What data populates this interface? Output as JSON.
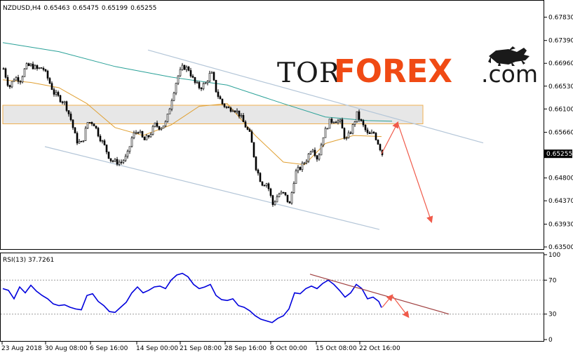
{
  "header": {
    "symbol": "NZDUSD,H4",
    "open": "0.65463",
    "high": "0.65475",
    "low": "0.65199",
    "close": "0.65255"
  },
  "price_axis": {
    "ticks": [
      "0.67830",
      "0.67390",
      "0.66960",
      "0.66530",
      "0.66100",
      "0.65660",
      "0.65255",
      "0.64800",
      "0.64370",
      "0.63930",
      "0.63500"
    ],
    "current": "0.65255"
  },
  "rsi": {
    "label": "RSI(13) 37.7261",
    "ticks": [
      "100",
      "70",
      "30",
      "0"
    ]
  },
  "time_axis": {
    "labels": [
      "23 Aug 2018",
      "30 Aug 08:00",
      "6 Sep 16:00",
      "14 Sep 00:00",
      "21 Sep 08:00",
      "28 Sep 16:00",
      "8 Oct 00:00",
      "15 Oct 08:00",
      "22 Oct 16:00"
    ]
  },
  "brand": {
    "tor": "TOR",
    "forex": "FOREX",
    "com": ".com",
    "mascot": "bull-and-bear-icon"
  },
  "colors": {
    "bull": "#000000",
    "bear": "#000000",
    "ma_fast": "#e0a033",
    "ma_slow": "#2aa198",
    "channel": "#b4c6d8",
    "zone_fill": "#e3e3e3",
    "zone_border": "#f0b050",
    "arrow": "#f05a4a",
    "rsi_line": "#0000dd",
    "rsi_trend": "#a04040",
    "brand_orange": "#f04a14"
  },
  "chart_data": [
    {
      "type": "candlestick",
      "title": "NZDUSD,H4",
      "ylim": [
        0.635,
        0.681
      ],
      "ohlc_header": [
        0.65463,
        0.65475,
        0.65199,
        0.65255
      ],
      "close_path": [
        [
          0,
          0.6686
        ],
        [
          8,
          0.665
        ],
        [
          16,
          0.667
        ],
        [
          24,
          0.6665
        ],
        [
          32,
          0.669
        ],
        [
          40,
          0.6692
        ],
        [
          48,
          0.6685
        ],
        [
          56,
          0.6688
        ],
        [
          64,
          0.6665
        ],
        [
          72,
          0.664
        ],
        [
          80,
          0.663
        ],
        [
          88,
          0.662
        ],
        [
          96,
          0.659
        ],
        [
          104,
          0.655
        ],
        [
          112,
          0.6545
        ],
        [
          120,
          0.6585
        ],
        [
          128,
          0.6585
        ],
        [
          136,
          0.656
        ],
        [
          144,
          0.654
        ],
        [
          152,
          0.6515
        ],
        [
          160,
          0.651
        ],
        [
          168,
          0.651
        ],
        [
          176,
          0.652
        ],
        [
          184,
          0.656
        ],
        [
          192,
          0.657
        ],
        [
          200,
          0.655
        ],
        [
          208,
          0.656
        ],
        [
          216,
          0.658
        ],
        [
          224,
          0.6575
        ],
        [
          232,
          0.6585
        ],
        [
          240,
          0.663
        ],
        [
          248,
          0.667
        ],
        [
          256,
          0.669
        ],
        [
          264,
          0.6685
        ],
        [
          272,
          0.666
        ],
        [
          280,
          0.665
        ],
        [
          288,
          0.6658
        ],
        [
          296,
          0.668
        ],
        [
          304,
          0.664
        ],
        [
          312,
          0.662
        ],
        [
          320,
          0.661
        ],
        [
          328,
          0.6612
        ],
        [
          336,
          0.66
        ],
        [
          344,
          0.658
        ],
        [
          352,
          0.656
        ],
        [
          360,
          0.65
        ],
        [
          368,
          0.647
        ],
        [
          376,
          0.647
        ],
        [
          384,
          0.643
        ],
        [
          392,
          0.645
        ],
        [
          400,
          0.645
        ],
        [
          408,
          0.643
        ],
        [
          416,
          0.649
        ],
        [
          424,
          0.65
        ],
        [
          432,
          0.6515
        ],
        [
          440,
          0.654
        ],
        [
          448,
          0.6515
        ],
        [
          456,
          0.656
        ],
        [
          464,
          0.6585
        ],
        [
          472,
          0.659
        ],
        [
          480,
          0.6585
        ],
        [
          488,
          0.655
        ],
        [
          496,
          0.657
        ],
        [
          504,
          0.66
        ],
        [
          512,
          0.658
        ],
        [
          520,
          0.656
        ],
        [
          528,
          0.6565
        ],
        [
          536,
          0.654
        ],
        [
          540,
          0.65255
        ]
      ],
      "ma_fast": [
        [
          0,
          0.6665
        ],
        [
          40,
          0.666
        ],
        [
          80,
          0.665
        ],
        [
          120,
          0.662
        ],
        [
          160,
          0.6575
        ],
        [
          200,
          0.656
        ],
        [
          240,
          0.658
        ],
        [
          280,
          0.6615
        ],
        [
          320,
          0.662
        ],
        [
          360,
          0.656
        ],
        [
          400,
          0.651
        ],
        [
          430,
          0.6505
        ],
        [
          460,
          0.6545
        ],
        [
          500,
          0.656
        ],
        [
          540,
          0.6558
        ]
      ],
      "ma_slow": [
        [
          0,
          0.6735
        ],
        [
          80,
          0.6718
        ],
        [
          160,
          0.669
        ],
        [
          240,
          0.667
        ],
        [
          320,
          0.6655
        ],
        [
          400,
          0.662
        ],
        [
          460,
          0.6595
        ],
        [
          520,
          0.6588
        ],
        [
          555,
          0.6587
        ]
      ],
      "channel_upper": [
        [
          207,
          0.6721
        ],
        [
          685,
          0.6546
        ]
      ],
      "channel_lower": [
        [
          60,
          0.6539
        ],
        [
          537,
          0.6383
        ]
      ],
      "resistance_zone": [
        0.6582,
        0.6617
      ],
      "forecast": [
        [
          540,
          0.65255
        ],
        [
          563,
          0.6584
        ],
        [
          611,
          0.6398
        ]
      ]
    },
    {
      "type": "line",
      "title": "RSI(13) 37.7261",
      "ylim": [
        0,
        100
      ],
      "levels": [
        70,
        30
      ],
      "values": [
        [
          0,
          60
        ],
        [
          8,
          58
        ],
        [
          16,
          48
        ],
        [
          24,
          62
        ],
        [
          32,
          55
        ],
        [
          40,
          64
        ],
        [
          48,
          57
        ],
        [
          56,
          52
        ],
        [
          64,
          48
        ],
        [
          72,
          42
        ],
        [
          80,
          40
        ],
        [
          88,
          41
        ],
        [
          96,
          38
        ],
        [
          104,
          36
        ],
        [
          112,
          35
        ],
        [
          120,
          52
        ],
        [
          128,
          54
        ],
        [
          136,
          45
        ],
        [
          144,
          40
        ],
        [
          152,
          33
        ],
        [
          160,
          32
        ],
        [
          168,
          38
        ],
        [
          176,
          44
        ],
        [
          184,
          55
        ],
        [
          192,
          62
        ],
        [
          200,
          55
        ],
        [
          208,
          58
        ],
        [
          216,
          62
        ],
        [
          224,
          63
        ],
        [
          232,
          60
        ],
        [
          240,
          70
        ],
        [
          248,
          76
        ],
        [
          256,
          78
        ],
        [
          264,
          74
        ],
        [
          272,
          65
        ],
        [
          280,
          60
        ],
        [
          288,
          62
        ],
        [
          296,
          65
        ],
        [
          304,
          52
        ],
        [
          312,
          47
        ],
        [
          320,
          46
        ],
        [
          328,
          48
        ],
        [
          336,
          40
        ],
        [
          344,
          38
        ],
        [
          352,
          34
        ],
        [
          360,
          28
        ],
        [
          368,
          24
        ],
        [
          376,
          22
        ],
        [
          384,
          20
        ],
        [
          392,
          25
        ],
        [
          400,
          28
        ],
        [
          408,
          36
        ],
        [
          416,
          55
        ],
        [
          424,
          54
        ],
        [
          432,
          60
        ],
        [
          440,
          63
        ],
        [
          448,
          60
        ],
        [
          456,
          66
        ],
        [
          464,
          70
        ],
        [
          472,
          65
        ],
        [
          480,
          58
        ],
        [
          488,
          50
        ],
        [
          496,
          55
        ],
        [
          504,
          65
        ],
        [
          512,
          60
        ],
        [
          520,
          48
        ],
        [
          528,
          50
        ],
        [
          536,
          45
        ],
        [
          540,
          37.7261
        ]
      ],
      "trend": [
        [
          438,
          77
        ],
        [
          636,
          30
        ]
      ],
      "forecast": [
        [
          541,
          38
        ],
        [
          555,
          52
        ],
        [
          578,
          27
        ]
      ]
    }
  ]
}
